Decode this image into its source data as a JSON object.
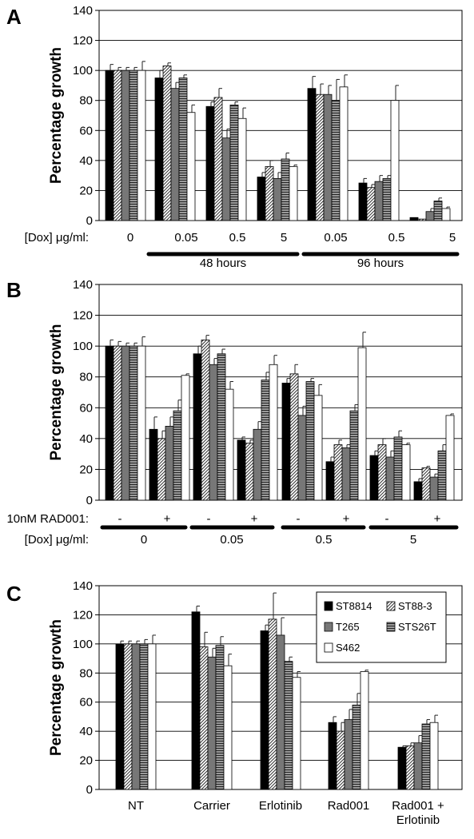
{
  "series": [
    {
      "name": "ST8814",
      "fill": "#000000",
      "pattern": "solid"
    },
    {
      "name": "ST88-3",
      "fill": "#ffffff",
      "pattern": "diagonal"
    },
    {
      "name": "T265",
      "fill": "#777777",
      "pattern": "solid"
    },
    {
      "name": "STS26T",
      "fill": "#999999",
      "pattern": "horizontal"
    },
    {
      "name": "S462",
      "fill": "#ffffff",
      "pattern": "solid"
    }
  ],
  "chart_data": [
    {
      "panel": "A",
      "type": "bar",
      "ylabel": "Percentage growth",
      "ylim": [
        0,
        140
      ],
      "yticks": [
        0,
        20,
        40,
        60,
        80,
        100,
        120,
        140
      ],
      "grid": true,
      "row_labels": [
        {
          "text": "[Dox] μg/ml:",
          "ticks": [
            "0",
            "0.05",
            "0.5",
            "5",
            "0.05",
            "0.5",
            "5"
          ]
        }
      ],
      "groups": [
        {
          "label": "48 hours",
          "span": [
            1,
            3
          ]
        },
        {
          "label": "96 hours",
          "span": [
            4,
            6
          ]
        }
      ],
      "categories": [
        "0",
        "0.05 (48 h)",
        "0.5 (48 h)",
        "5 (48 h)",
        "0.05 (96 h)",
        "0.5 (96 h)",
        "5 (96 h)"
      ],
      "values": [
        [
          100,
          100,
          100,
          100,
          100
        ],
        [
          95,
          103,
          88,
          95,
          72
        ],
        [
          76,
          82,
          55,
          77,
          68
        ],
        [
          29,
          36,
          28,
          41,
          36
        ],
        [
          88,
          84,
          84,
          80,
          89
        ],
        [
          25,
          22,
          26,
          28,
          80
        ],
        [
          2,
          1,
          6,
          13,
          8
        ]
      ],
      "errors": [
        [
          4,
          2,
          2,
          2,
          6
        ],
        [
          5,
          2,
          4,
          2,
          5
        ],
        [
          3,
          6,
          6,
          2,
          7
        ],
        [
          3,
          4,
          4,
          4,
          1
        ],
        [
          8,
          7,
          6,
          14,
          8
        ],
        [
          3,
          2,
          4,
          2,
          10
        ],
        [
          0,
          0,
          2,
          2,
          1
        ]
      ]
    },
    {
      "panel": "B",
      "type": "bar",
      "ylabel": "Percentage growth",
      "ylim": [
        0,
        140
      ],
      "yticks": [
        0,
        20,
        40,
        60,
        80,
        100,
        120,
        140
      ],
      "grid": true,
      "row_labels": [
        {
          "text": "10nM RAD001:",
          "ticks": [
            "-",
            "+",
            "-",
            "+",
            "-",
            "+",
            "-",
            "+"
          ]
        },
        {
          "text": "[Dox] μg/ml:",
          "ticks": [
            "0",
            "0.05",
            "0.5",
            "5"
          ]
        }
      ],
      "categories": [
        "0 -",
        "0 +",
        "0.05 -",
        "0.05 +",
        "0.5 -",
        "0.5 +",
        "5 -",
        "5 +"
      ],
      "values": [
        [
          100,
          100,
          100,
          100,
          100
        ],
        [
          46,
          40,
          48,
          58,
          81
        ],
        [
          95,
          104,
          88,
          95,
          72
        ],
        [
          39,
          37,
          46,
          78,
          88
        ],
        [
          76,
          82,
          55,
          77,
          68
        ],
        [
          25,
          36,
          34,
          58,
          99
        ],
        [
          29,
          36,
          28,
          41,
          36
        ],
        [
          12,
          21,
          15,
          32,
          55
        ]
      ],
      "errors": [
        [
          4,
          3,
          2,
          2,
          6
        ],
        [
          8,
          5,
          6,
          7,
          1
        ],
        [
          5,
          3,
          4,
          3,
          5
        ],
        [
          2,
          2,
          5,
          5,
          6
        ],
        [
          3,
          6,
          6,
          2,
          7
        ],
        [
          3,
          3,
          2,
          4,
          10
        ],
        [
          3,
          4,
          4,
          4,
          1
        ],
        [
          2,
          1,
          2,
          4,
          1
        ]
      ]
    },
    {
      "panel": "C",
      "type": "bar",
      "ylabel": "Percentage growth",
      "ylim": [
        0,
        140
      ],
      "yticks": [
        0,
        20,
        40,
        60,
        80,
        100,
        120,
        140
      ],
      "grid": true,
      "legend": "top-right",
      "categories": [
        "NT",
        "Carrier",
        "Erlotinib",
        "Rad001",
        "Rad001 +\nErlotinib"
      ],
      "values": [
        [
          100,
          100,
          100,
          100,
          100
        ],
        [
          122,
          98,
          91,
          99,
          85
        ],
        [
          109,
          117,
          106,
          88,
          77
        ],
        [
          46,
          40,
          48,
          58,
          81
        ],
        [
          29,
          30,
          32,
          45,
          46
        ]
      ],
      "errors": [
        [
          2,
          2,
          2,
          3,
          6
        ],
        [
          4,
          10,
          6,
          6,
          8
        ],
        [
          4,
          18,
          12,
          3,
          4
        ],
        [
          4,
          6,
          7,
          8,
          1
        ],
        [
          1,
          2,
          5,
          3,
          5
        ]
      ]
    }
  ]
}
